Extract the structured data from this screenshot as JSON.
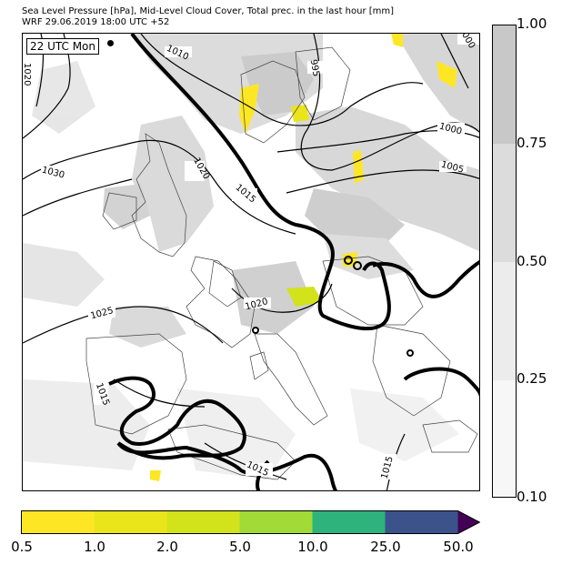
{
  "header": {
    "line1": "Sea Level Pressure [hPa], Mid-Level Cloud Cover, Total prec. in the last hour [mm]",
    "line2": "WRF 29.06.2019 18:00 UTC +52"
  },
  "map": {
    "time_label": "22 UTC Mon",
    "isobar_labels": {
      "l1010": "1010",
      "l995": "995",
      "l1000a": "1000",
      "l1000b": "1000",
      "l1005": "1005",
      "l1020a": "1020",
      "l1020b": "1020",
      "l1020c": "1020",
      "l1030": "1030",
      "l1015a": "1015",
      "l1015b": "1015",
      "l1015c": "1015",
      "l1015d": "1015",
      "l1025": "1025"
    }
  },
  "cloud_colorbar": {
    "ticks": [
      "1.00",
      "0.75",
      "0.50",
      "0.25",
      "0.10"
    ],
    "colors": [
      "#c8c8c8",
      "#dcdcdc",
      "#ececec",
      "#f7f7f7"
    ]
  },
  "precip_colorbar": {
    "ticks": [
      "0.5",
      "1.0",
      "2.0",
      "5.0",
      "10.0",
      "25.0",
      "50.0"
    ],
    "colors": [
      "#fde725",
      "#eae51a",
      "#d2e21b",
      "#a2da37",
      "#2eb37c",
      "#3b528b",
      "#440154"
    ]
  }
}
